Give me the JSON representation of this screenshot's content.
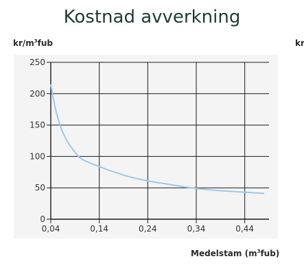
{
  "header": {
    "title": "Kostnad avverkning",
    "ylabel_main": "kr/m",
    "ylabel_sup": "3",
    "ylabel_suffix": "fub",
    "ylabel_clipped": "kr",
    "xlabel_main": "Medelstam (m",
    "xlabel_sup": "3",
    "xlabel_suffix": "fub)"
  },
  "chart_data": {
    "type": "line",
    "title": "Kostnad avverkning",
    "ylabel": "kr/m3fub",
    "xlabel": "Medelstam (m3fub)",
    "xlim": [
      0.04,
      0.49
    ],
    "ylim": [
      0,
      250
    ],
    "x_ticks": [
      "0,04",
      "0,14",
      "0,24",
      "0,34",
      "0,44"
    ],
    "y_ticks": [
      "0",
      "50",
      "100",
      "150",
      "200",
      "250"
    ],
    "grid": true,
    "series": [
      {
        "color": "#9cc8ec",
        "x": [
          0.04,
          0.05,
          0.06,
          0.07,
          0.08,
          0.1,
          0.12,
          0.14,
          0.16,
          0.18,
          0.2,
          0.24,
          0.28,
          0.32,
          0.34,
          0.38,
          0.42,
          0.46,
          0.48
        ],
        "y": [
          215,
          175,
          148,
          130,
          117,
          98,
          90,
          84,
          78,
          73,
          68,
          61,
          56,
          51,
          49,
          46,
          44,
          42,
          41
        ]
      }
    ]
  }
}
